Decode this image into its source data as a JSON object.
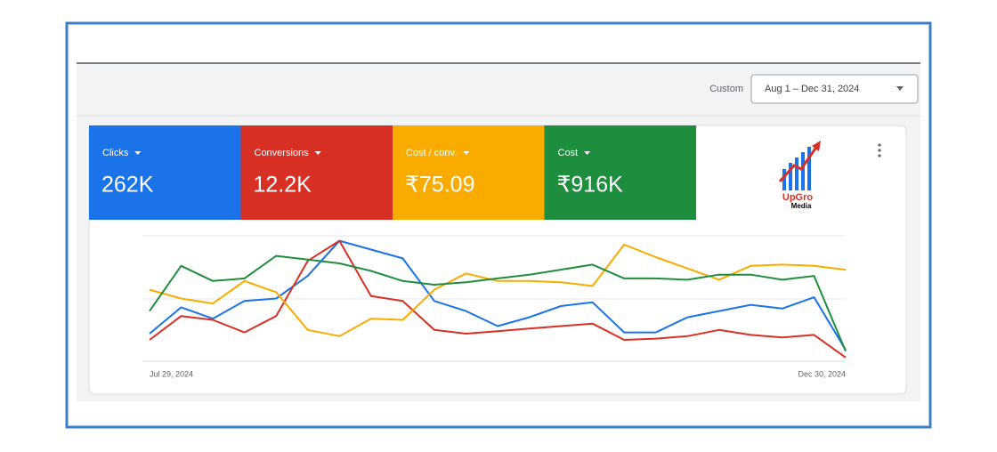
{
  "toolbar": {
    "range_label": "Custom",
    "date_range": "Aug 1 – Dec 31, 2024"
  },
  "logo": {
    "brand": "UpGro",
    "sub": "Media"
  },
  "chart_data": {
    "type": "line",
    "categories": [
      "Jul 29, 2024",
      null,
      null,
      null,
      null,
      null,
      null,
      null,
      null,
      null,
      null,
      null,
      null,
      null,
      null,
      null,
      null,
      null,
      null,
      null,
      null,
      null,
      "Dec 30, 2024"
    ],
    "ylim": [
      0,
      100
    ],
    "series": [
      {
        "name": "Clicks",
        "total": "262K",
        "color": "#1a73e8",
        "values": [
          22,
          43,
          34,
          48,
          50,
          68,
          96,
          89,
          82,
          48,
          40,
          28,
          35,
          44,
          47,
          23,
          23,
          35,
          40,
          45,
          42,
          51,
          9
        ]
      },
      {
        "name": "Conversions",
        "total": "12.2K",
        "color": "#d93025",
        "values": [
          17,
          36,
          33,
          23,
          36,
          80,
          96,
          52,
          48,
          25,
          22,
          24,
          26,
          28,
          30,
          17,
          18,
          20,
          25,
          21,
          19,
          21,
          3
        ]
      },
      {
        "name": "Cost / conv.",
        "total": "₹75.09",
        "color": "#f9ab00",
        "values": [
          57,
          50,
          46,
          64,
          55,
          25,
          20,
          34,
          33,
          57,
          70,
          64,
          64,
          63,
          60,
          93,
          83,
          74,
          65,
          76,
          77,
          76,
          73
        ]
      },
      {
        "name": "Cost",
        "total": "₹916K",
        "color": "#1e8e3e",
        "values": [
          40,
          76,
          64,
          66,
          84,
          81,
          78,
          72,
          64,
          61,
          63,
          66,
          69,
          73,
          77,
          66,
          66,
          65,
          69,
          69,
          65,
          68,
          8
        ]
      }
    ]
  }
}
